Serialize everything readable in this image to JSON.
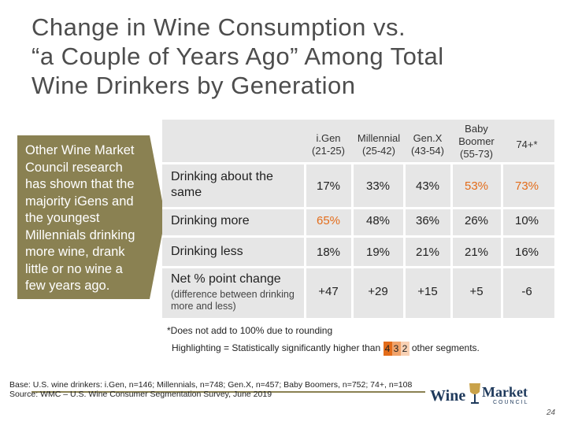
{
  "title": {
    "line1": "Change in Wine Consumption vs.",
    "line2": "“a Couple of Years Ago” Among Total",
    "line3": "Wine Drinkers by Generation"
  },
  "sidebar": {
    "text": "Other Wine Market Council research has shown that the majority iGens and the youngest Millennials drinking more wine, drank little or no wine a few years ago."
  },
  "table": {
    "headers": [
      {
        "name": "i.Gen",
        "range": "(21-25)"
      },
      {
        "name": "Millennial",
        "range": "(25-42)"
      },
      {
        "name": "Gen.X",
        "range": "(43-54)"
      },
      {
        "name": "Baby Boomer",
        "range": "(55-73)"
      },
      {
        "name": "74+*",
        "range": ""
      }
    ],
    "rows": [
      {
        "label": "Drinking about the same",
        "values": [
          "17%",
          "33%",
          "43%",
          "53%",
          "73%"
        ]
      },
      {
        "label": "Drinking more",
        "values": [
          "65%",
          "48%",
          "36%",
          "26%",
          "10%"
        ]
      },
      {
        "label": "Drinking less",
        "values": [
          "18%",
          "19%",
          "21%",
          "21%",
          "16%"
        ]
      },
      {
        "label": "Net % point change",
        "sublabel": "(difference between drinking more and less)",
        "values": [
          "+47",
          "+29",
          "+15",
          "+5",
          "-6"
        ]
      }
    ],
    "highlight_color": "#e36c1a"
  },
  "footnote": "*Does not add to 100% due to rounding",
  "legend": {
    "prefix": "Highlighting = Statistically significantly higher than",
    "swatches": [
      "4",
      "3",
      "2"
    ],
    "suffix": "other segments."
  },
  "source": {
    "line1": "Base: U.S. wine drinkers: i.Gen, n=146; Millennials, n=748; Gen.X, n=457; Baby Boomers, n=752; 74+, n=108",
    "line2": "Source: WMC – U.S. Wine Consumer Segmentation Survey, June 2019"
  },
  "logo": {
    "word1": "Wine",
    "word2": "Market",
    "word3": "COUNCIL"
  },
  "page_number": "24"
}
